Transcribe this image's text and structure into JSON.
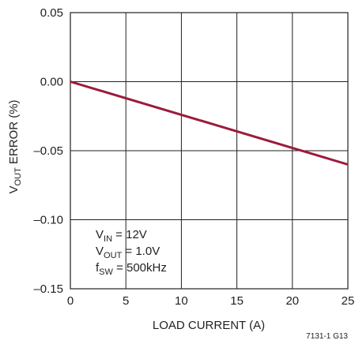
{
  "chart_data": {
    "type": "line",
    "title": "",
    "xlabel": "LOAD CURRENT (A)",
    "ylabel": {
      "main": "V",
      "sub": "OUT",
      "rest": " ERROR (%)"
    },
    "xlim": [
      0,
      25
    ],
    "ylim": [
      -0.15,
      0.05
    ],
    "x_ticks": [
      "0",
      "5",
      "10",
      "15",
      "20",
      "25"
    ],
    "y_ticks": [
      "0.05",
      "0.00",
      "–0.05",
      "–0.10",
      "–0.15"
    ],
    "grid": true,
    "series": [
      {
        "x": [
          0,
          25
        ],
        "y": [
          0.0,
          -0.06
        ],
        "color": "#9b1b3a"
      }
    ],
    "conditions": [
      {
        "main": "V",
        "sub": "IN",
        "rest": " = 12V"
      },
      {
        "main": "V",
        "sub": "OUT",
        "rest": " = 1.0V"
      },
      {
        "main": "f",
        "sub": "SW",
        "rest": " = 500kHz"
      }
    ],
    "figure_id": "7131-1 G13"
  }
}
